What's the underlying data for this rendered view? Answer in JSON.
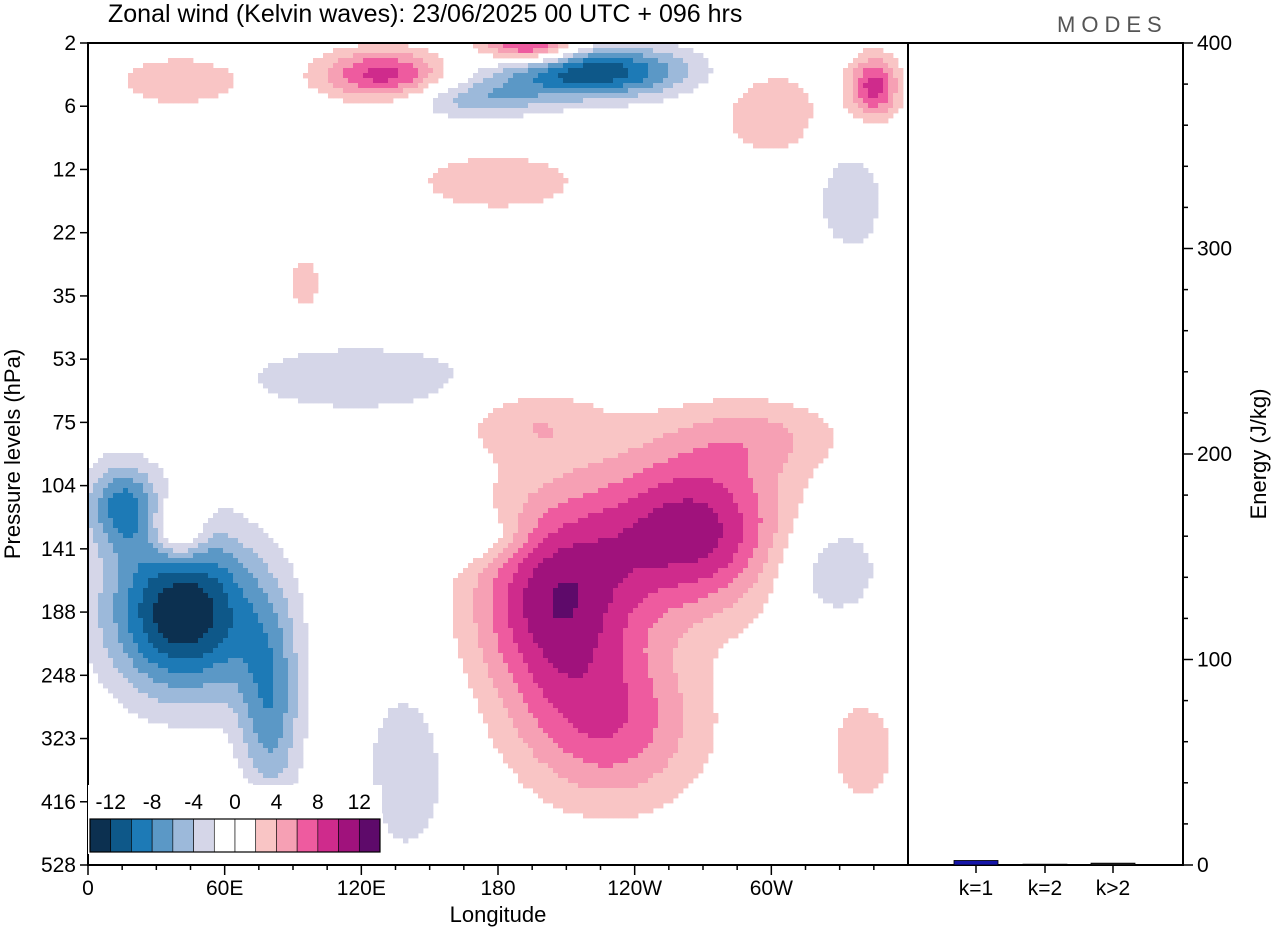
{
  "title": "Zonal wind (Kelvin waves):  23/06/2025  00 UTC  + 096 hrs",
  "brand": "MODES",
  "colors": {
    "levels": [
      "#0c3050",
      "#0e5889",
      "#1d7ab6",
      "#5b98c6",
      "#9cb9da",
      "#d5d6e8",
      "#ffffff",
      "#ffffff",
      "#f9c5c5",
      "#f6a0b4",
      "#ee5b9f",
      "#cf2b8c",
      "#a0127c",
      "#5e0a6a"
    ],
    "bar": "#1515a8"
  },
  "chart_data": [
    {
      "type": "heatmap",
      "title": "Zonal wind (Kelvin waves):  23/06/2025  00 UTC  + 096 hrs",
      "xlabel": "Longitude",
      "ylabel": "Pressure levels (hPa)",
      "x_ticks": [
        "0",
        "60E",
        "120E",
        "180",
        "120W",
        "60W"
      ],
      "x_tick_degrees": [
        0,
        60,
        120,
        180,
        240,
        300
      ],
      "xlim": [
        0,
        360
      ],
      "y_ticks": [
        "2",
        "6",
        "12",
        "22",
        "35",
        "53",
        "75",
        "104",
        "141",
        "188",
        "248",
        "323",
        "416",
        "528"
      ],
      "colorbar_labels": [
        "-12",
        "-8",
        "-4",
        "0",
        "4",
        "8",
        "12"
      ],
      "colorbar_levels": [
        -14,
        -12,
        -10,
        -8,
        -6,
        -4,
        -2,
        0,
        2,
        4,
        6,
        8,
        10,
        12,
        14
      ],
      "features": [
        {
          "lon": 42,
          "level_index": 9.0,
          "value": -14,
          "sx": 33,
          "sy": 1.3
        },
        {
          "lon": 80,
          "level_index": 10.5,
          "value": -7,
          "sx": 14,
          "sy": 1.6
        },
        {
          "lon": 15,
          "level_index": 7.3,
          "value": -8,
          "sx": 16,
          "sy": 0.7
        },
        {
          "lon": 140,
          "level_index": 11.5,
          "value": -3.5,
          "sx": 20,
          "sy": 1.5
        },
        {
          "lon": 205,
          "level_index": 8.8,
          "value": 11,
          "sx": 35,
          "sy": 1.6
        },
        {
          "lon": 265,
          "level_index": 7.7,
          "value": 11,
          "sx": 42,
          "sy": 1.3
        },
        {
          "lon": 230,
          "level_index": 10.8,
          "value": 7,
          "sx": 40,
          "sy": 1.3
        },
        {
          "lon": 295,
          "level_index": 6.2,
          "value": 3.5,
          "sx": 38,
          "sy": 0.6
        },
        {
          "lon": 40,
          "level_index": 7.7,
          "value": 7,
          "sx": 11,
          "sy": 0.5
        },
        {
          "lon": 195,
          "level_index": 6.0,
          "value": 3.5,
          "sx": 32,
          "sy": 0.6
        },
        {
          "lon": 180,
          "level_index": 2.2,
          "value": 3.5,
          "sx": 40,
          "sy": 0.5
        },
        {
          "lon": 120,
          "level_index": 5.3,
          "value": -3.5,
          "sx": 60,
          "sy": 0.6
        },
        {
          "lon": 170,
          "level_index": 7.8,
          "value": -3.5,
          "sx": 25,
          "sy": 0.4
        },
        {
          "lon": 325,
          "level_index": 8.3,
          "value": -4,
          "sx": 25,
          "sy": 0.9
        },
        {
          "lon": 335,
          "level_index": 2.5,
          "value": -3.5,
          "sx": 16,
          "sy": 0.9
        },
        {
          "lon": 340,
          "level_index": 11.2,
          "value": 4,
          "sx": 14,
          "sy": 0.8
        },
        {
          "lon": 300,
          "level_index": 1.1,
          "value": 4,
          "sx": 22,
          "sy": 0.7
        },
        {
          "lon": 345,
          "level_index": 0.7,
          "value": 9,
          "sx": 11,
          "sy": 0.5
        },
        {
          "lon": 40,
          "level_index": 0.6,
          "value": 4,
          "sx": 28,
          "sy": 0.4
        },
        {
          "lon": 130,
          "level_index": 0.5,
          "value": 9,
          "sx": 28,
          "sy": 0.4
        },
        {
          "lon": 195,
          "level_index": 0.05,
          "value": 11,
          "sx": 22,
          "sy": 0.3
        },
        {
          "lon": 220,
          "level_index": 0.45,
          "value": -12,
          "sx": 42,
          "sy": 0.42
        },
        {
          "lon": 170,
          "level_index": 0.9,
          "value": -5,
          "sx": 30,
          "sy": 0.3
        },
        {
          "lon": 60,
          "level_index": 12.3,
          "value": 4,
          "sx": 22,
          "sy": 0.5
        },
        {
          "lon": 95,
          "level_index": 3.8,
          "value": 4,
          "sx": 7,
          "sy": 0.4
        }
      ]
    },
    {
      "type": "bar",
      "ylabel": "Energy (J/kg)",
      "categories": [
        "k=1",
        "k=2",
        "k>2"
      ],
      "values": [
        2.2,
        0.4,
        0.9
      ],
      "ylim": [
        0,
        400
      ],
      "y_ticks": [
        "0",
        "100",
        "200",
        "300",
        "400"
      ]
    }
  ]
}
